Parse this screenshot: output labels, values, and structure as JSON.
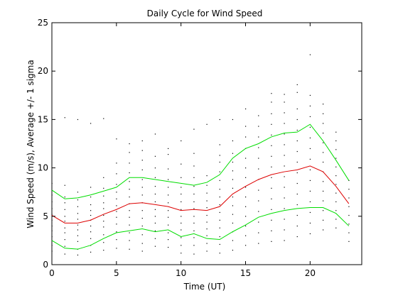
{
  "chart_data": {
    "type": "line",
    "title": "Daily Cycle for Wind Speed",
    "xlabel": "Time (UT)",
    "ylabel": "Wind Speed (m/s), Average +/- 1 sigma",
    "xlim": [
      0,
      24
    ],
    "ylim": [
      0,
      25
    ],
    "x_ticks": [
      0,
      5,
      10,
      15,
      20
    ],
    "y_ticks": [
      0,
      5,
      10,
      15,
      20,
      25
    ],
    "grid": false,
    "legend": "none",
    "x": [
      0,
      1,
      2,
      3,
      4,
      5,
      6,
      7,
      8,
      9,
      10,
      11,
      12,
      13,
      14,
      15,
      16,
      17,
      18,
      19,
      20,
      21,
      22,
      23
    ],
    "series": [
      {
        "color": "#00dd00",
        "values": [
          7.7,
          6.8,
          6.9,
          7.2,
          7.6,
          8.0,
          9.0,
          9.0,
          8.8,
          8.6,
          8.4,
          8.2,
          8.5,
          9.3,
          11.0,
          12.0,
          12.5,
          13.2,
          13.6,
          13.7,
          14.5,
          12.8,
          10.8,
          8.7
        ]
      },
      {
        "color": "#dd0000",
        "values": [
          5.1,
          4.3,
          4.3,
          4.6,
          5.2,
          5.7,
          6.3,
          6.4,
          6.2,
          6.0,
          5.6,
          5.7,
          5.6,
          6.0,
          7.3,
          8.1,
          8.8,
          9.3,
          9.6,
          9.8,
          10.2,
          9.6,
          8.1,
          6.3
        ]
      },
      {
        "color": "#00dd00",
        "values": [
          2.5,
          1.7,
          1.6,
          2.0,
          2.7,
          3.3,
          3.5,
          3.7,
          3.4,
          3.6,
          2.9,
          3.2,
          2.7,
          2.6,
          3.4,
          4.1,
          4.9,
          5.3,
          5.6,
          5.8,
          5.9,
          5.9,
          5.3,
          4.0
        ]
      }
    ],
    "scatter": {
      "color": "#000000",
      "points": [
        [
          0,
          1.4
        ],
        [
          0,
          2.0
        ],
        [
          0,
          2.9
        ],
        [
          0,
          3.5
        ],
        [
          0,
          4.0
        ],
        [
          0,
          4.6
        ],
        [
          0,
          5.2
        ],
        [
          0,
          5.8
        ],
        [
          0,
          6.5
        ],
        [
          0,
          7.2
        ],
        [
          0,
          8.4
        ],
        [
          1,
          1.1
        ],
        [
          1,
          1.9
        ],
        [
          1,
          2.6
        ],
        [
          1,
          3.3
        ],
        [
          1,
          3.8
        ],
        [
          1,
          4.5
        ],
        [
          1,
          5.0
        ],
        [
          1,
          5.7
        ],
        [
          1,
          6.4
        ],
        [
          1,
          7.0
        ],
        [
          1,
          8.2
        ],
        [
          1,
          15.2
        ],
        [
          2,
          1.0
        ],
        [
          2,
          1.6
        ],
        [
          2,
          2.4
        ],
        [
          2,
          3.0
        ],
        [
          2,
          3.6
        ],
        [
          2,
          4.1
        ],
        [
          2,
          4.7
        ],
        [
          2,
          5.3
        ],
        [
          2,
          6.0
        ],
        [
          2,
          6.7
        ],
        [
          2,
          7.5
        ],
        [
          2,
          15.0
        ],
        [
          3,
          1.3
        ],
        [
          3,
          2.0
        ],
        [
          3,
          2.7
        ],
        [
          3,
          3.4
        ],
        [
          3,
          4.0
        ],
        [
          3,
          4.6
        ],
        [
          3,
          5.1
        ],
        [
          3,
          5.6
        ],
        [
          3,
          6.2
        ],
        [
          3,
          7.0
        ],
        [
          3,
          8.0
        ],
        [
          3,
          14.6
        ],
        [
          4,
          1.5
        ],
        [
          4,
          2.3
        ],
        [
          4,
          3.1
        ],
        [
          4,
          3.9
        ],
        [
          4,
          4.5
        ],
        [
          4,
          5.1
        ],
        [
          4,
          5.8
        ],
        [
          4,
          6.4
        ],
        [
          4,
          7.1
        ],
        [
          4,
          7.9
        ],
        [
          4,
          9.0
        ],
        [
          4,
          15.1
        ],
        [
          5,
          1.7
        ],
        [
          5,
          2.6
        ],
        [
          5,
          3.4
        ],
        [
          5,
          4.2
        ],
        [
          5,
          4.9
        ],
        [
          5,
          5.5
        ],
        [
          5,
          6.1
        ],
        [
          5,
          6.8
        ],
        [
          5,
          7.5
        ],
        [
          5,
          8.3
        ],
        [
          5,
          9.4
        ],
        [
          5,
          10.5
        ],
        [
          5,
          13.0
        ],
        [
          6,
          1.6
        ],
        [
          6,
          2.5
        ],
        [
          6,
          3.3
        ],
        [
          6,
          4.1
        ],
        [
          6,
          4.9
        ],
        [
          6,
          5.6
        ],
        [
          6,
          6.3
        ],
        [
          6,
          7.0
        ],
        [
          6,
          7.8
        ],
        [
          6,
          8.6
        ],
        [
          6,
          9.5
        ],
        [
          6,
          10.5
        ],
        [
          6,
          11.6
        ],
        [
          6,
          12.5
        ],
        [
          7,
          1.4
        ],
        [
          7,
          2.2
        ],
        [
          7,
          3.1
        ],
        [
          7,
          4.0
        ],
        [
          7,
          4.8
        ],
        [
          7,
          5.6
        ],
        [
          7,
          6.4
        ],
        [
          7,
          7.2
        ],
        [
          7,
          8.0
        ],
        [
          7,
          8.8
        ],
        [
          7,
          9.8
        ],
        [
          7,
          10.8
        ],
        [
          7,
          11.8
        ],
        [
          7,
          12.8
        ],
        [
          8,
          1.9
        ],
        [
          8,
          2.7
        ],
        [
          8,
          3.5
        ],
        [
          8,
          4.3
        ],
        [
          8,
          5.0
        ],
        [
          8,
          5.7
        ],
        [
          8,
          6.5
        ],
        [
          8,
          7.3
        ],
        [
          8,
          8.1
        ],
        [
          8,
          9.0
        ],
        [
          8,
          10.0
        ],
        [
          8,
          11.2
        ],
        [
          8,
          13.5
        ],
        [
          9,
          1.8
        ],
        [
          9,
          2.6
        ],
        [
          9,
          3.3
        ],
        [
          9,
          4.1
        ],
        [
          9,
          4.9
        ],
        [
          9,
          5.6
        ],
        [
          9,
          6.4
        ],
        [
          9,
          7.2
        ],
        [
          9,
          8.0
        ],
        [
          9,
          8.8
        ],
        [
          9,
          9.9
        ],
        [
          9,
          11.4
        ],
        [
          9,
          12.0
        ],
        [
          10,
          1.2
        ],
        [
          10,
          2.0
        ],
        [
          10,
          2.8
        ],
        [
          10,
          3.6
        ],
        [
          10,
          4.3
        ],
        [
          10,
          5.0
        ],
        [
          10,
          5.7
        ],
        [
          10,
          6.5
        ],
        [
          10,
          7.3
        ],
        [
          10,
          8.0
        ],
        [
          10,
          9.0
        ],
        [
          10,
          10.4
        ],
        [
          10,
          12.8
        ],
        [
          11,
          1.1
        ],
        [
          11,
          2.0
        ],
        [
          11,
          2.8
        ],
        [
          11,
          3.5
        ],
        [
          11,
          4.3
        ],
        [
          11,
          5.0
        ],
        [
          11,
          5.8
        ],
        [
          11,
          6.5
        ],
        [
          11,
          7.3
        ],
        [
          11,
          8.1
        ],
        [
          11,
          9.0
        ],
        [
          11,
          10.2
        ],
        [
          11,
          11.5
        ],
        [
          11,
          14.0
        ],
        [
          12,
          1.4
        ],
        [
          12,
          2.2
        ],
        [
          12,
          3.0
        ],
        [
          12,
          3.7
        ],
        [
          12,
          4.4
        ],
        [
          12,
          5.1
        ],
        [
          12,
          5.9
        ],
        [
          12,
          6.6
        ],
        [
          12,
          7.4
        ],
        [
          12,
          8.2
        ],
        [
          12,
          9.2
        ],
        [
          12,
          14.5
        ],
        [
          13,
          1.2
        ],
        [
          13,
          2.1
        ],
        [
          13,
          2.9
        ],
        [
          13,
          3.8
        ],
        [
          13,
          4.6
        ],
        [
          13,
          5.4
        ],
        [
          13,
          6.2
        ],
        [
          13,
          7.0
        ],
        [
          13,
          7.8
        ],
        [
          13,
          8.7
        ],
        [
          13,
          9.6
        ],
        [
          13,
          10.6
        ],
        [
          13,
          11.3
        ],
        [
          13,
          12.4
        ],
        [
          13,
          15.0
        ],
        [
          14,
          1.5
        ],
        [
          14,
          2.5
        ],
        [
          14,
          3.4
        ],
        [
          14,
          4.3
        ],
        [
          14,
          5.2
        ],
        [
          14,
          6.1
        ],
        [
          14,
          7.0
        ],
        [
          14,
          7.9
        ],
        [
          14,
          8.8
        ],
        [
          14,
          9.7
        ],
        [
          14,
          10.6
        ],
        [
          14,
          11.5
        ],
        [
          14,
          12.8
        ],
        [
          14,
          15.0
        ],
        [
          15,
          2.0
        ],
        [
          15,
          3.0
        ],
        [
          15,
          4.0
        ],
        [
          15,
          5.0
        ],
        [
          15,
          6.0
        ],
        [
          15,
          7.0
        ],
        [
          15,
          8.0
        ],
        [
          15,
          9.0
        ],
        [
          15,
          10.0
        ],
        [
          15,
          11.0
        ],
        [
          15,
          12.0
        ],
        [
          15,
          13.2
        ],
        [
          15,
          14.3
        ],
        [
          15,
          16.1
        ],
        [
          16,
          2.2
        ],
        [
          16,
          3.3
        ],
        [
          16,
          4.4
        ],
        [
          16,
          5.5
        ],
        [
          16,
          6.6
        ],
        [
          16,
          7.7
        ],
        [
          16,
          8.8
        ],
        [
          16,
          9.9
        ],
        [
          16,
          11.0
        ],
        [
          16,
          12.1
        ],
        [
          16,
          13.2
        ],
        [
          16,
          14.3
        ],
        [
          16,
          15.4
        ],
        [
          17,
          2.4
        ],
        [
          17,
          3.5
        ],
        [
          17,
          4.6
        ],
        [
          17,
          5.7
        ],
        [
          17,
          6.8
        ],
        [
          17,
          7.9
        ],
        [
          17,
          9.0
        ],
        [
          17,
          10.1
        ],
        [
          17,
          11.2
        ],
        [
          17,
          12.3
        ],
        [
          17,
          13.4
        ],
        [
          17,
          14.5
        ],
        [
          17,
          15.6
        ],
        [
          17,
          16.8
        ],
        [
          17,
          17.7
        ],
        [
          18,
          2.5
        ],
        [
          18,
          3.6
        ],
        [
          18,
          4.7
        ],
        [
          18,
          5.8
        ],
        [
          18,
          6.9
        ],
        [
          18,
          8.0
        ],
        [
          18,
          9.1
        ],
        [
          18,
          10.2
        ],
        [
          18,
          11.3
        ],
        [
          18,
          12.4
        ],
        [
          18,
          13.5
        ],
        [
          18,
          14.6
        ],
        [
          18,
          15.7
        ],
        [
          18,
          16.8
        ],
        [
          18,
          17.6
        ],
        [
          19,
          2.9
        ],
        [
          19,
          4.0
        ],
        [
          19,
          5.1
        ],
        [
          19,
          6.2
        ],
        [
          19,
          7.3
        ],
        [
          19,
          8.4
        ],
        [
          19,
          9.5
        ],
        [
          19,
          10.6
        ],
        [
          19,
          11.7
        ],
        [
          19,
          12.8
        ],
        [
          19,
          13.9
        ],
        [
          19,
          15.0
        ],
        [
          19,
          16.1
        ],
        [
          19,
          17.8
        ],
        [
          19,
          18.6
        ],
        [
          20,
          3.2
        ],
        [
          20,
          4.3
        ],
        [
          20,
          5.4
        ],
        [
          20,
          6.5
        ],
        [
          20,
          7.6
        ],
        [
          20,
          8.7
        ],
        [
          20,
          9.8
        ],
        [
          20,
          10.9
        ],
        [
          20,
          12.0
        ],
        [
          20,
          13.1
        ],
        [
          20,
          14.2
        ],
        [
          20,
          15.3
        ],
        [
          20,
          16.4
        ],
        [
          20,
          17.5
        ],
        [
          20,
          21.7
        ],
        [
          21,
          3.6
        ],
        [
          21,
          4.6
        ],
        [
          21,
          5.6
        ],
        [
          21,
          6.6
        ],
        [
          21,
          7.6
        ],
        [
          21,
          8.6
        ],
        [
          21,
          9.6
        ],
        [
          21,
          10.6
        ],
        [
          21,
          11.6
        ],
        [
          21,
          12.6
        ],
        [
          21,
          13.6
        ],
        [
          21,
          14.6
        ],
        [
          21,
          15.6
        ],
        [
          21,
          16.6
        ],
        [
          22,
          3.8
        ],
        [
          22,
          4.7
        ],
        [
          22,
          5.6
        ],
        [
          22,
          6.5
        ],
        [
          22,
          7.4
        ],
        [
          22,
          8.3
        ],
        [
          22,
          9.2
        ],
        [
          22,
          10.1
        ],
        [
          22,
          11.0
        ],
        [
          22,
          11.9
        ],
        [
          22,
          12.8
        ],
        [
          22,
          13.7
        ],
        [
          23,
          2.4
        ],
        [
          23,
          3.3
        ],
        [
          23,
          4.2
        ],
        [
          23,
          5.1
        ],
        [
          23,
          6.0
        ],
        [
          23,
          6.9
        ],
        [
          23,
          7.8
        ],
        [
          23,
          8.7
        ]
      ]
    }
  }
}
